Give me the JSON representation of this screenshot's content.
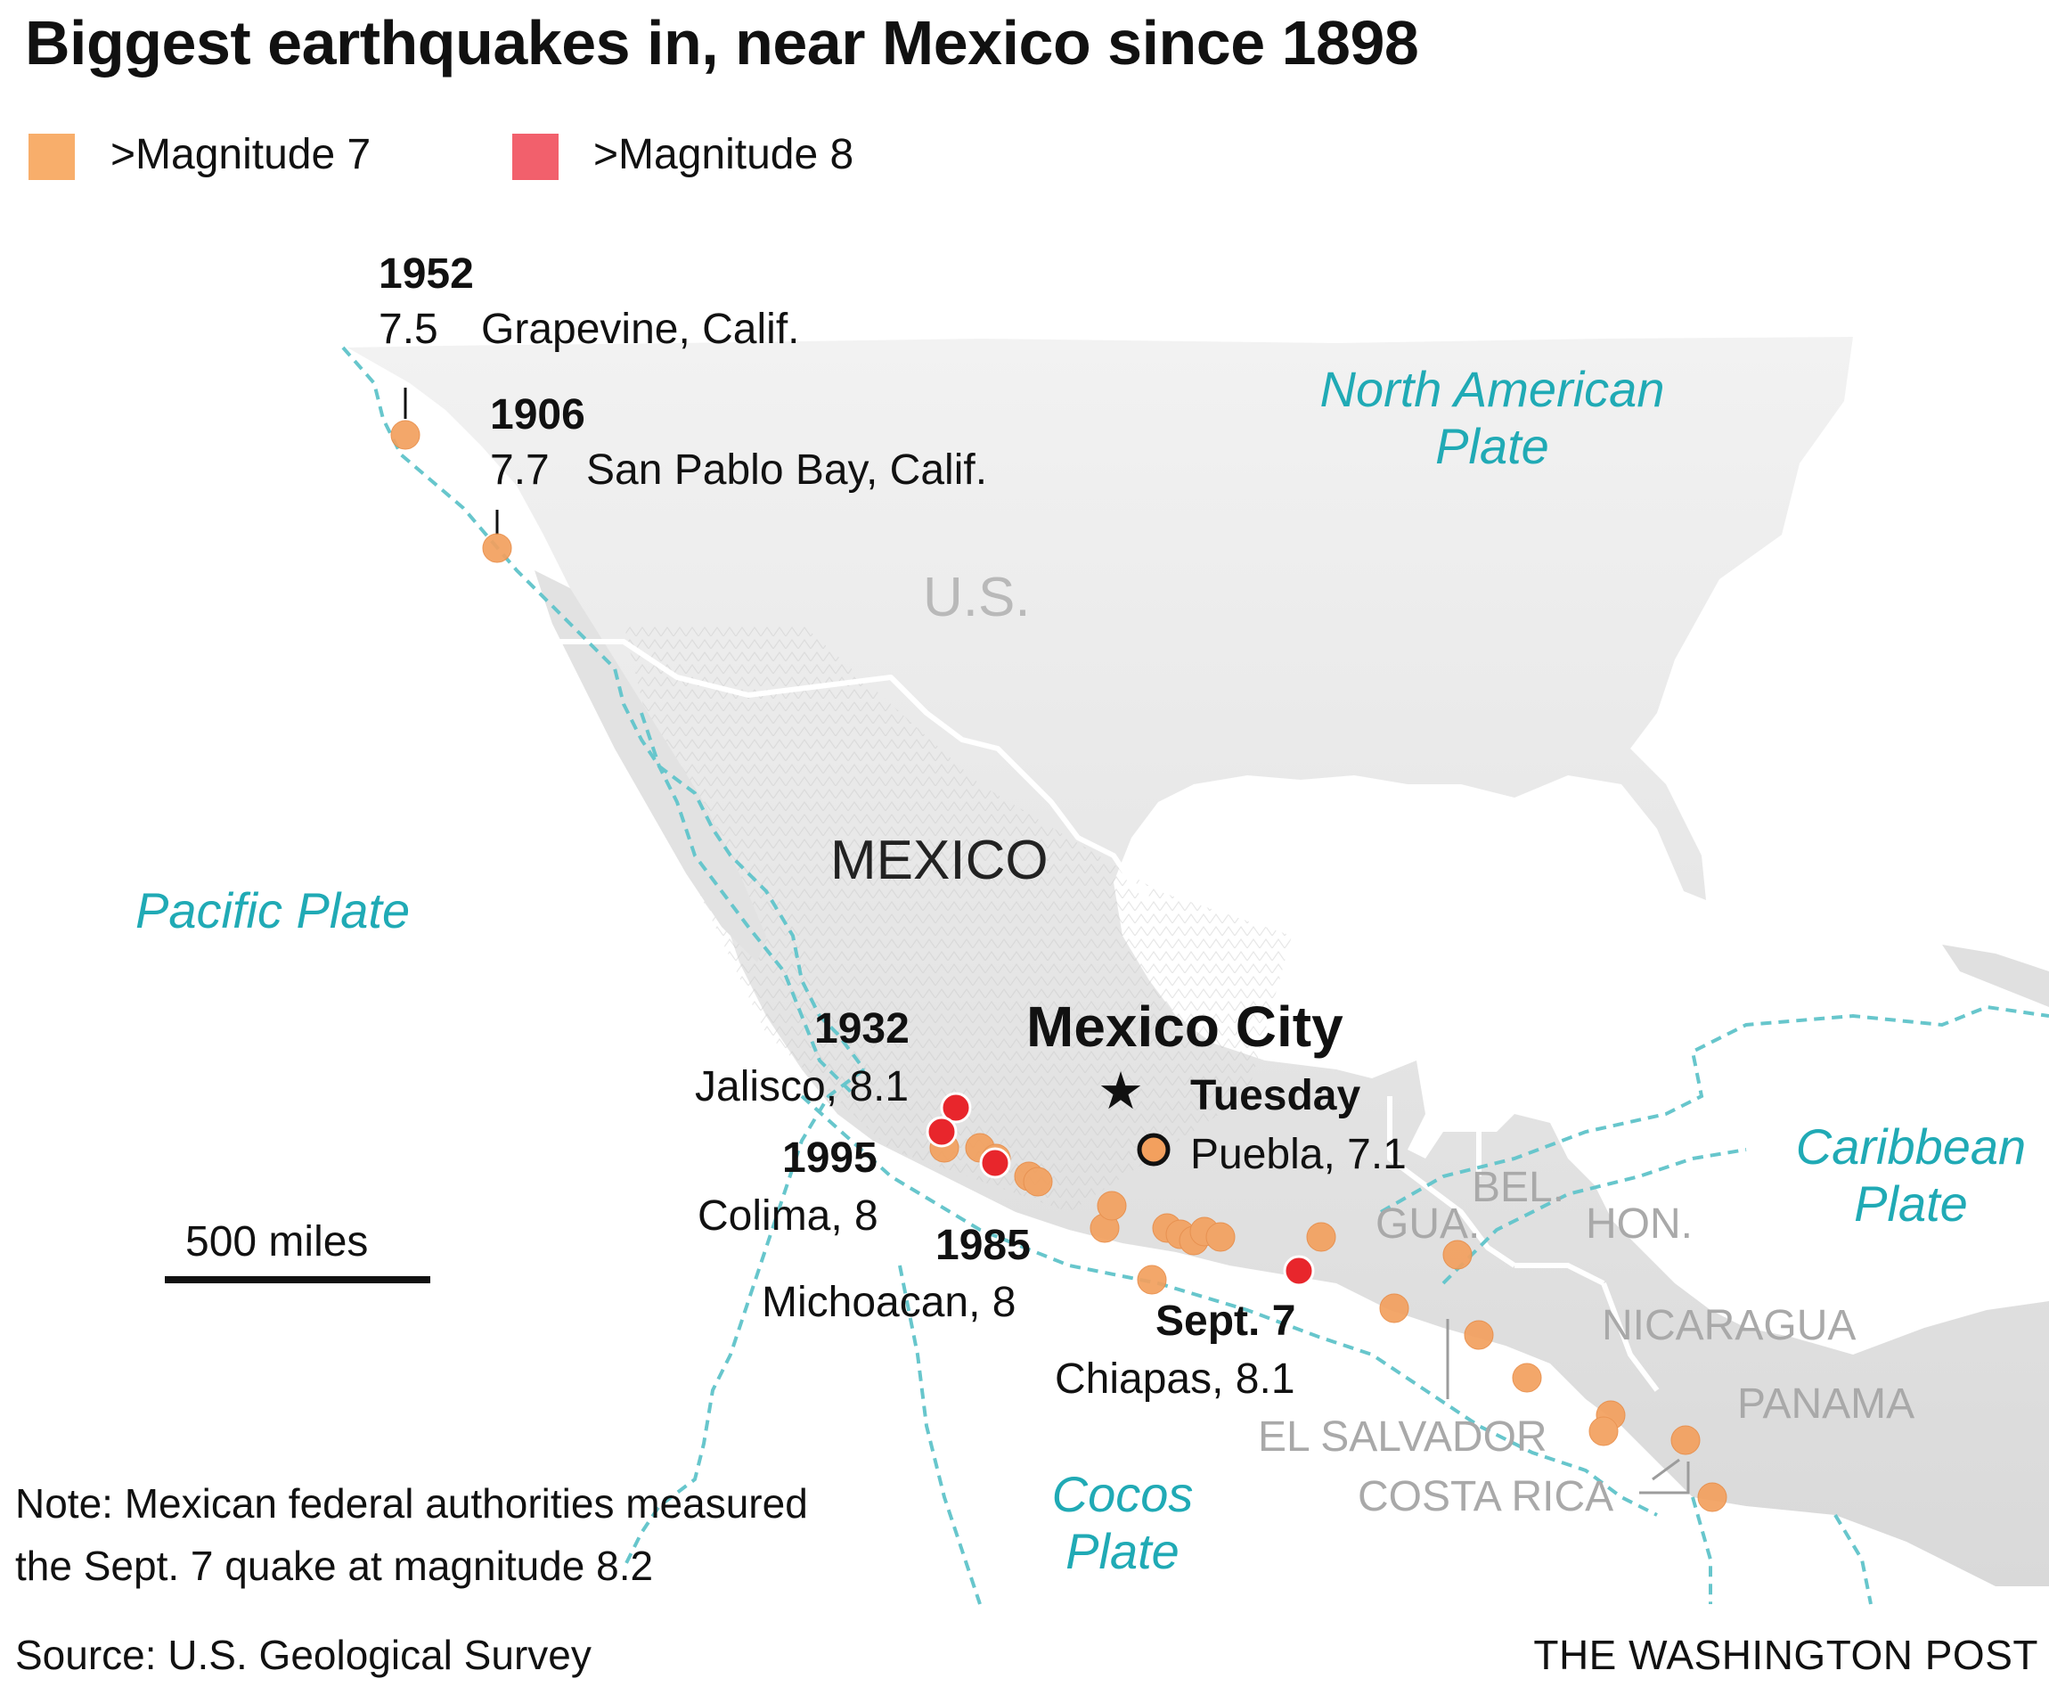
{
  "title": "Biggest earthquakes in, near Mexico since 1898",
  "legend": [
    {
      "label": ">Magnitude 7",
      "color": "#f8ae6b"
    },
    {
      "label": ">Magnitude 8",
      "color": "#f2606c"
    }
  ],
  "colors": {
    "mag7": "#f3a05e",
    "mag8": "#e8262c",
    "plate_boundary": "#67c6cc",
    "land": "#e4e4e4",
    "border": "#ffffff"
  },
  "plates": {
    "north_american": [
      "North American",
      "Plate"
    ],
    "pacific": "Pacific Plate",
    "caribbean": [
      "Caribbean",
      "Plate"
    ],
    "cocos": [
      "Cocos",
      "Plate"
    ]
  },
  "countries": {
    "us": "U.S.",
    "mexico": "MEXICO",
    "bel": "BEL.",
    "gua": "GUA.",
    "hon": "HON.",
    "nicaragua": "NICARAGUA",
    "panama": "PANAMA",
    "el_salvador": "EL SALVADOR",
    "costa_rica": "COSTA RICA"
  },
  "city": {
    "name": "Mexico City",
    "icon": "star-icon"
  },
  "quakes": [
    {
      "year": "1952",
      "magnitude": "7.5",
      "place": "Grapevine, Calif."
    },
    {
      "year": "1906",
      "magnitude": "7.7",
      "place": "San Pablo Bay, Calif."
    },
    {
      "year": "1932",
      "label": "Jalisco, 8.1"
    },
    {
      "year": "1995",
      "label": "Colima, 8"
    },
    {
      "year": "1985",
      "label": "Michoacan, 8"
    },
    {
      "year": "Tuesday",
      "label": "Puebla, 7.1"
    },
    {
      "year": "Sept. 7",
      "label": "Chiapas, 8.1"
    }
  ],
  "scale": {
    "label": "500 miles"
  },
  "note": [
    "Note: Mexican federal authorities measured",
    "the Sept. 7 quake at magnitude 8.2"
  ],
  "source": "Source: U.S. Geological Survey",
  "credit": "THE WASHINGTON POST"
}
